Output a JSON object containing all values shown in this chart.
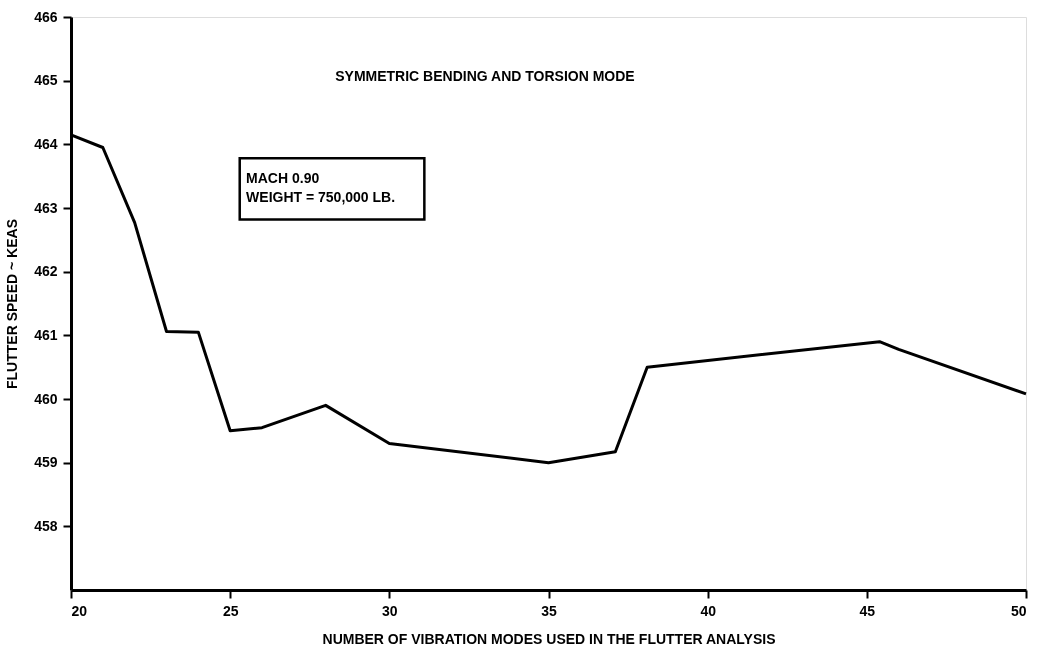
{
  "chart_data": {
    "type": "line",
    "xlabel": "NUMBER OF VIBRATION MODES USED IN THE FLUTTER ANALYSIS",
    "ylabel": "FLUTTER SPEED ~ KEAS",
    "annotations": [
      "SYMMETRIC BENDING AND TORSION MODE",
      "MACH 0.90\nWEIGHT = 750,000 LB."
    ],
    "series": [
      {
        "color": "#000000",
        "x": [
          20,
          21,
          22,
          23,
          24,
          25,
          26,
          28,
          30,
          35,
          37.1,
          38.1,
          45.4,
          46,
          50
        ],
        "values": [
          464.15,
          463.95,
          462.77,
          461.06,
          461.05,
          459.5,
          459.55,
          459.9,
          459.3,
          459.0,
          459.17,
          460.5,
          460.9,
          460.78,
          460.08
        ]
      }
    ],
    "xlim": [
      20,
      50
    ],
    "xticks": [
      20,
      25,
      30,
      35,
      40,
      45,
      50
    ],
    "ylim": [
      457,
      466
    ],
    "yticks": [
      458,
      459,
      460,
      461,
      462,
      463,
      464,
      465,
      466
    ],
    "grid": false,
    "legend": false,
    "marker": "none",
    "line_style": "solid"
  }
}
